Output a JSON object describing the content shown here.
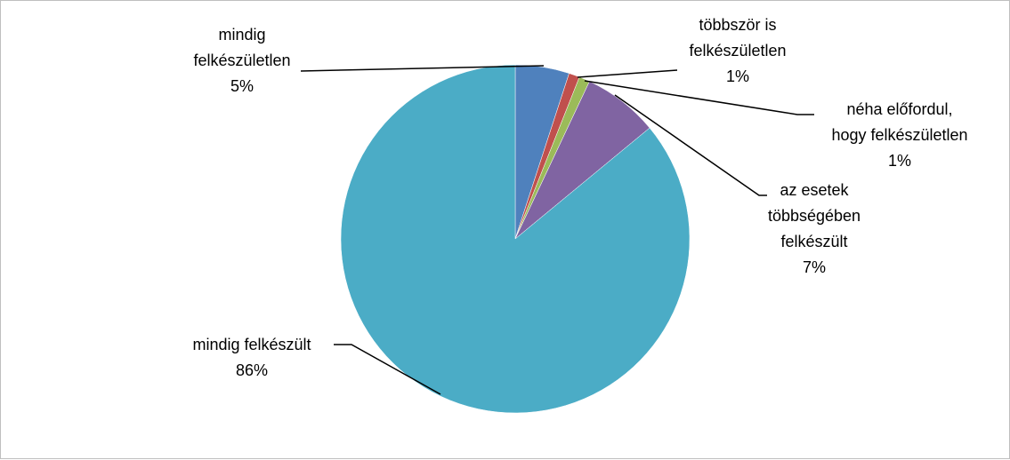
{
  "chart_data": {
    "type": "pie",
    "title": "",
    "start_angle_deg": 0,
    "direction": "clockwise",
    "slices": [
      {
        "label_lines": [
          "mindig",
          "felkészületlen"
        ],
        "value": 5,
        "percent_text": "5%",
        "color": "#4f81bd"
      },
      {
        "label_lines": [
          "többször is",
          "felkészületlen"
        ],
        "value": 1,
        "percent_text": "1%",
        "color": "#c0504d"
      },
      {
        "label_lines": [
          "néha előfordul,",
          "hogy felkészületlen"
        ],
        "value": 1,
        "percent_text": "1%",
        "color": "#9bbb59"
      },
      {
        "label_lines": [
          "az esetek",
          "többségében",
          "felkészült"
        ],
        "value": 7,
        "percent_text": "7%",
        "color": "#8064a2"
      },
      {
        "label_lines": [
          "mindig felkészült"
        ],
        "value": 86,
        "percent_text": "86%",
        "color": "#4bacc6"
      }
    ],
    "legend": "none",
    "data_labels": "outside with leader lines"
  }
}
